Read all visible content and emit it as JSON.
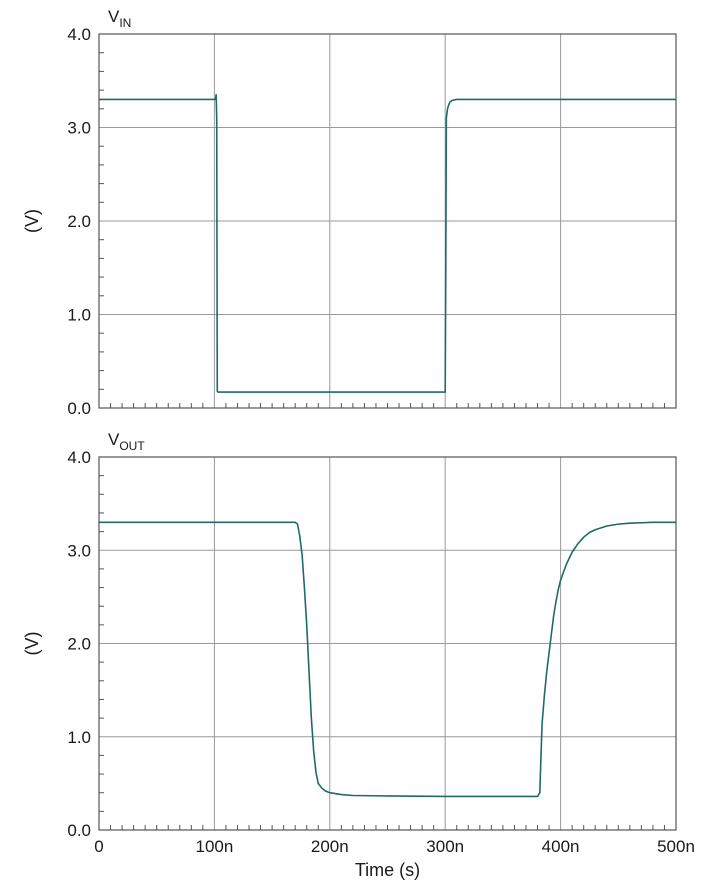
{
  "colors": {
    "trace": "#1f6b63",
    "grid": "#9a9a9a",
    "frame": "#555555"
  },
  "chart_data": [
    {
      "type": "line",
      "title": "",
      "trace_label": {
        "main": "V",
        "sub": "IN"
      },
      "xlabel": "",
      "ylabel": "(V)",
      "xlim": [
        0,
        500
      ],
      "x_unit": "ns",
      "ylim": [
        0,
        4
      ],
      "x_ticks": [],
      "y_ticks": [
        {
          "value": 0,
          "label": "0.0"
        },
        {
          "value": 1,
          "label": "1.0"
        },
        {
          "value": 2,
          "label": "2.0"
        },
        {
          "value": 3,
          "label": "3.0"
        },
        {
          "value": 4,
          "label": "4.0"
        }
      ],
      "grid": true,
      "series": [
        {
          "x": [
            0,
            100,
            101,
            101.5,
            102,
            102.5,
            103,
            103.5,
            110,
            200,
            299,
            300,
            300.5,
            301,
            302,
            303,
            304,
            306,
            310,
            320,
            400,
            500
          ],
          "y": [
            3.3,
            3.3,
            3.3,
            3.35,
            3.1,
            0.18,
            0.17,
            0.17,
            0.17,
            0.17,
            0.17,
            0.17,
            1.5,
            3.1,
            3.2,
            3.24,
            3.27,
            3.29,
            3.3,
            3.3,
            3.3,
            3.3
          ]
        }
      ]
    },
    {
      "type": "line",
      "title": "",
      "trace_label": {
        "main": "V",
        "sub": "OUT"
      },
      "xlabel": "Time (s)",
      "ylabel": "(V)",
      "xlim": [
        0,
        500
      ],
      "x_unit": "ns",
      "ylim": [
        0,
        4
      ],
      "x_ticks": [
        {
          "value": 0,
          "label": "0"
        },
        {
          "value": 100,
          "label": "100n"
        },
        {
          "value": 200,
          "label": "200n"
        },
        {
          "value": 300,
          "label": "300n"
        },
        {
          "value": 400,
          "label": "400n"
        },
        {
          "value": 500,
          "label": "500n"
        }
      ],
      "y_ticks": [
        {
          "value": 0,
          "label": "0.0"
        },
        {
          "value": 1,
          "label": "1.0"
        },
        {
          "value": 2,
          "label": "2.0"
        },
        {
          "value": 3,
          "label": "3.0"
        },
        {
          "value": 4,
          "label": "4.0"
        }
      ],
      "grid": true,
      "series": [
        {
          "x": [
            0,
            100,
            170,
            172,
            174,
            176,
            178,
            180,
            182,
            184,
            186,
            188,
            190,
            193,
            196,
            200,
            210,
            220,
            250,
            300,
            350,
            380,
            382,
            383,
            384,
            386,
            388,
            390,
            392,
            394,
            396,
            398,
            400,
            405,
            410,
            415,
            420,
            425,
            430,
            440,
            450,
            460,
            480,
            500
          ],
          "y": [
            3.3,
            3.3,
            3.3,
            3.28,
            3.15,
            2.95,
            2.6,
            2.2,
            1.7,
            1.2,
            0.85,
            0.62,
            0.5,
            0.45,
            0.42,
            0.4,
            0.38,
            0.37,
            0.365,
            0.36,
            0.36,
            0.36,
            0.4,
            0.8,
            1.15,
            1.45,
            1.7,
            1.9,
            2.1,
            2.3,
            2.45,
            2.58,
            2.68,
            2.85,
            2.98,
            3.07,
            3.14,
            3.19,
            3.22,
            3.26,
            3.28,
            3.29,
            3.3,
            3.3
          ]
        }
      ]
    }
  ]
}
